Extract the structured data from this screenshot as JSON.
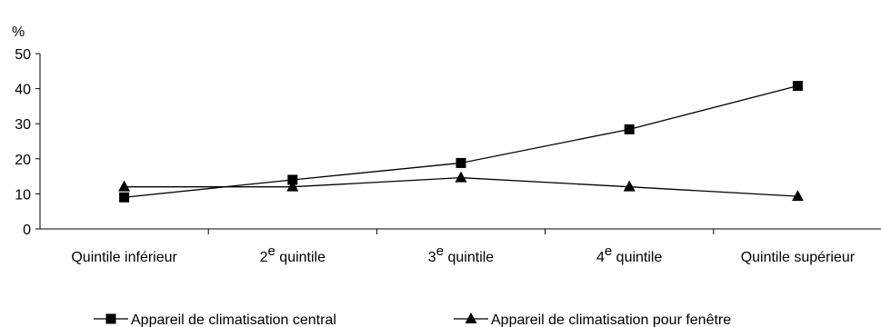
{
  "chart_data": {
    "type": "line",
    "y_unit_label": "%",
    "ylim": [
      0,
      50
    ],
    "y_ticks": [
      "0",
      "10",
      "20",
      "30",
      "40",
      "50"
    ],
    "grid": false,
    "legend_position": "bottom",
    "categories": [
      {
        "base": "Quintile inférieur",
        "sup": ""
      },
      {
        "base": "2",
        "sup": "e",
        "rest": " quintile"
      },
      {
        "base": "3",
        "sup": "e",
        "rest": " quintile"
      },
      {
        "base": "4",
        "sup": "e",
        "rest": " quintile"
      },
      {
        "base": "Quintile supérieur",
        "sup": ""
      }
    ],
    "series": [
      {
        "name": "Appareil de climatisation central",
        "marker": "square",
        "color": "#000000",
        "values": [
          9,
          14,
          18.8,
          28.4,
          40.8
        ]
      },
      {
        "name": "Appareil de climatisation pour fenêtre",
        "marker": "triangle",
        "color": "#000000",
        "values": [
          12,
          12,
          14.6,
          12,
          9.3
        ]
      }
    ]
  }
}
